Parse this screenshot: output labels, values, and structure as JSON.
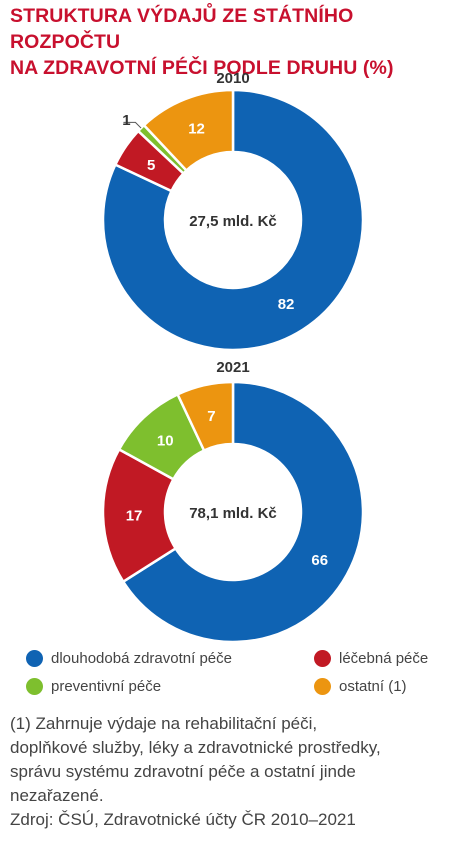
{
  "title_lines": [
    "STRUKTURA VÝDAJŮ ZE STÁTNÍHO ROZPOČTU",
    "NA ZDRAVOTNÍ PÉČI PODLE DRUHU (%)"
  ],
  "colors": {
    "dlouhodoba": "#0f63b3",
    "lecebna": "#c11924",
    "preventivni": "#7ebf2e",
    "ostatni": "#ec9510",
    "title": "#c8102e"
  },
  "chart_data": [
    {
      "type": "pie",
      "title": "2010",
      "center_label": "27,5 mld. Kč",
      "categories": [
        "dlouhodobá zdravotní péče",
        "léčebná péče",
        "preventivní péče",
        "ostatní (1)"
      ],
      "values": [
        82,
        5,
        1,
        12
      ]
    },
    {
      "type": "pie",
      "title": "2021",
      "center_label": "78,1 mld. Kč",
      "categories": [
        "dlouhodobá zdravotní péče",
        "léčebná péče",
        "preventivní péče",
        "ostatní (1)"
      ],
      "values": [
        66,
        17,
        10,
        7
      ]
    }
  ],
  "legend": [
    {
      "label": "dlouhodobá zdravotní péče",
      "color": "#0f63b3"
    },
    {
      "label": "léčebná péče",
      "color": "#c11924"
    },
    {
      "label": "preventivní péče",
      "color": "#7ebf2e"
    },
    {
      "label": "ostatní (1)",
      "color": "#ec9510"
    }
  ],
  "footnote_lines": [
    "(1) Zahrnuje výdaje na rehabilitační péči,",
    "doplňkové služby, léky a zdravotnické prostředky,",
    "správu systému zdravotní péče a ostatní jinde",
    "nezařazené."
  ],
  "source": "Zdroj: ČSÚ, Zdravotnické účty ČR 2010–2021"
}
